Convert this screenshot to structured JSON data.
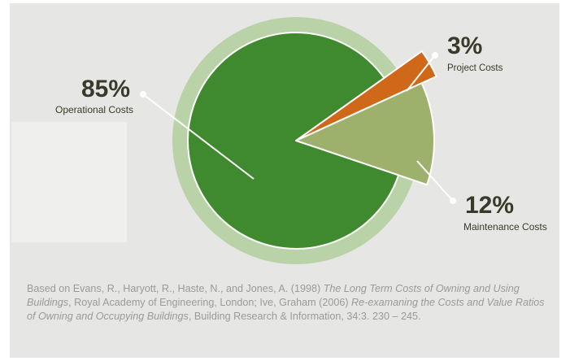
{
  "chart_data": {
    "type": "pie",
    "slices": [
      {
        "label": "Operational Costs",
        "value": 85,
        "display": "85%",
        "color": "#3f8a2e"
      },
      {
        "label": "Project Costs",
        "value": 3,
        "display": "3%",
        "color": "#d0681a"
      },
      {
        "label": "Maintenance Costs",
        "value": 12,
        "display": "12%",
        "color": "#9db06c"
      }
    ],
    "ring_color": "#b9d2a7"
  },
  "source": {
    "prefix": "Based on Evans, R., Haryott, R., Haste, N., and Jones, A. (1998) ",
    "title1": "The Long Term Costs of Owning and Using Buildings",
    "mid": ", Royal Academy of Engineering, London; Ive, Graham (2006) ",
    "title2": "Re-examaning the Costs and Value Ratios of Owning and Occupying Buildings",
    "suffix": ", Building Research & Information, 34:3. 230 – 245."
  }
}
